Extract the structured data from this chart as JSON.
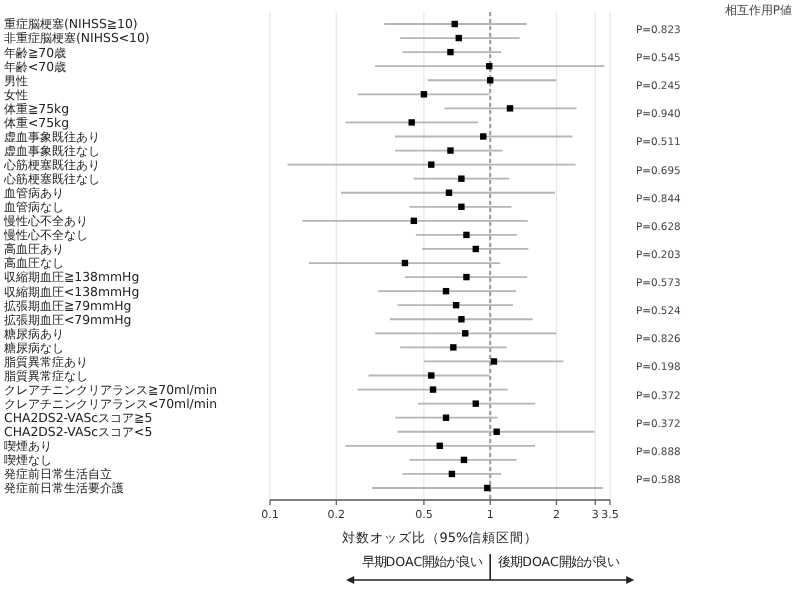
{
  "chart_data": {
    "type": "scatter",
    "orientation": "horizontal",
    "xlabel": "対数オッズ比（95%信頼区間）",
    "categories": [
      "重症脳梗塞(NIHSS≧10)",
      "非重症脳梗塞(NIHSS<10)",
      "年齢≧70歳",
      "年齢<70歳",
      "男性",
      "女性",
      "体重≧75kg",
      "体重<75kg",
      "虚血事象既往あり",
      "虚血事象既往なし",
      "心筋梗塞既往あり",
      "心筋梗塞既往なし",
      "血管病あり",
      "血管病なし",
      "慢性心不全あり",
      "慢性心不全なし",
      "高血圧あり",
      "高血圧なし",
      "収縮期血圧≧138mmHg",
      "収縮期血圧<138mmHg",
      "拡張期血圧≧79mmHg",
      "拡張期血圧<79mmHg",
      "糖尿病あり",
      "糖尿病なし",
      "脂質異常症あり",
      "脂質異常症なし",
      "クレアチニンクリアランス≧70ml/min",
      "クレアチニンクリアランス<70ml/min",
      "CHA2DS2-VAScスコア≧5",
      "CHA2DS2-VAScスコア<5",
      "喫煙あり",
      "喫煙なし",
      "発症前日常生活自立",
      "発症前日常生活要介護"
    ],
    "values": [
      0.69,
      0.72,
      0.66,
      0.99,
      1.0,
      0.5,
      1.23,
      0.44,
      0.93,
      0.66,
      0.54,
      0.74,
      0.65,
      0.74,
      0.45,
      0.78,
      0.86,
      0.41,
      0.78,
      0.63,
      0.7,
      0.74,
      0.77,
      0.68,
      1.04,
      0.54,
      0.55,
      0.86,
      0.63,
      1.07,
      0.59,
      0.76,
      0.67,
      0.97
    ],
    "errors": [
      [
        0.33,
        1.46
      ],
      [
        0.39,
        1.36
      ],
      [
        0.4,
        1.12
      ],
      [
        0.3,
        3.3
      ],
      [
        0.52,
        2.0
      ],
      [
        0.25,
        0.99
      ],
      [
        0.62,
        2.47
      ],
      [
        0.22,
        0.88
      ],
      [
        0.37,
        2.36
      ],
      [
        0.37,
        1.14
      ],
      [
        0.12,
        2.44
      ],
      [
        0.45,
        1.22
      ],
      [
        0.21,
        1.97
      ],
      [
        0.43,
        1.25
      ],
      [
        0.14,
        1.48
      ],
      [
        0.46,
        1.32
      ],
      [
        0.49,
        1.49
      ],
      [
        0.15,
        1.11
      ],
      [
        0.41,
        1.47
      ],
      [
        0.31,
        1.31
      ],
      [
        0.38,
        1.27
      ],
      [
        0.35,
        1.56
      ],
      [
        0.3,
        2.0
      ],
      [
        0.39,
        1.19
      ],
      [
        0.5,
        2.15
      ],
      [
        0.28,
        0.99
      ],
      [
        0.25,
        1.2
      ],
      [
        0.47,
        1.6
      ],
      [
        0.37,
        1.08
      ],
      [
        0.38,
        2.97
      ],
      [
        0.22,
        1.6
      ],
      [
        0.43,
        1.32
      ],
      [
        0.4,
        1.12
      ],
      [
        0.29,
        3.25
      ]
    ],
    "color": "#000000",
    "marker": "square",
    "log": "x",
    "grid": "x",
    "xlim": [
      0.1,
      3.5
    ],
    "xticks": [
      0.1,
      0.2,
      0.5,
      1,
      2,
      3,
      3.5
    ],
    "ref_lines": [
      {
        "axis": "x",
        "value": 1,
        "color": "#999999",
        "line_style": "dashed"
      }
    ],
    "annotations": [
      "相互作用P値",
      "P=0.823",
      "P=0.545",
      "P=0.245",
      "P=0.940",
      "P=0.511",
      "P=0.695",
      "P=0.844",
      "P=0.628",
      "P=0.203",
      "P=0.573",
      "P=0.524",
      "P=0.826",
      "P=0.198",
      "P=0.372",
      "P=0.372",
      "P=0.888",
      "P=0.588",
      "早期DOAC開始が良い",
      "後期DOAC開始が良い"
    ]
  }
}
